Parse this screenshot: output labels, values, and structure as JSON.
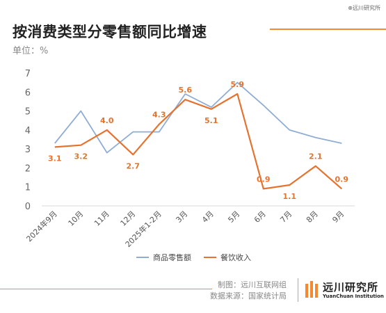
{
  "watermark": "⊕远川研究所",
  "title": "按消费类型分零售额同比增速",
  "unit": "单位：%",
  "footer": {
    "maker": "制图：远川互联网组",
    "source": "数据来源：国家统计局"
  },
  "logo": {
    "name": "远川研究所",
    "english": "YuanChuan Institution"
  },
  "colors": {
    "retail": "#8fadd4",
    "catering": "#e5722e",
    "accent": "#f4892f"
  },
  "chart_data": {
    "type": "line",
    "categories": [
      "2024年9月",
      "10月",
      "11月",
      "12月",
      "2025年1-2月",
      "3月",
      "4月",
      "5月",
      "6月",
      "7月",
      "8月",
      "9月"
    ],
    "series": [
      {
        "name": "商品零售额",
        "values": [
          3.3,
          5.0,
          2.8,
          3.9,
          3.9,
          5.9,
          5.2,
          6.5,
          5.3,
          4.0,
          3.6,
          3.3
        ],
        "labels": []
      },
      {
        "name": "餐饮收入",
        "values": [
          3.1,
          3.2,
          4.0,
          2.7,
          4.3,
          5.6,
          5.1,
          5.9,
          0.9,
          1.1,
          2.1,
          0.9
        ],
        "labels": [
          "3.1",
          "3.2",
          "4.0",
          "2.7",
          "4.3",
          "5.6",
          "5.1",
          "5.9",
          "0.9",
          "1.1",
          "2.1",
          "0.9"
        ]
      }
    ],
    "ylim": [
      0,
      7
    ],
    "yticks": [
      "0",
      "1",
      "2",
      "3",
      "4",
      "5",
      "6",
      "7"
    ],
    "grid": false,
    "legend": "bottom"
  }
}
